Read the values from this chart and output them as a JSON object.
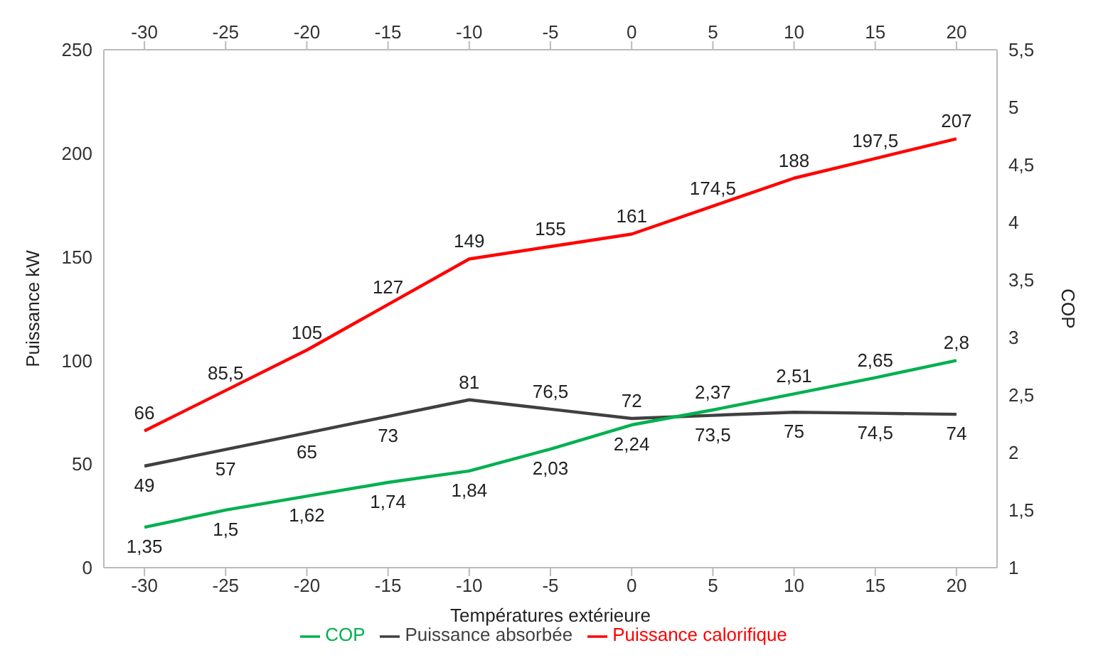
{
  "chart_data": {
    "type": "line",
    "xlabel": "Températures extérieure",
    "ylabel": "Puissance kW",
    "y2label": "COP",
    "x": [
      -30,
      -25,
      -20,
      -15,
      -10,
      -5,
      0,
      5,
      10,
      15,
      20
    ],
    "series": [
      {
        "name": "Puissance calorifique",
        "color": "#ff0000",
        "values": [
          66,
          85.5,
          105,
          127,
          149,
          155,
          161,
          174.5,
          188,
          197.5,
          207
        ],
        "value_labels": [
          "66",
          "85,5",
          "105",
          "127",
          "149",
          "155",
          "161",
          "174,5",
          "188",
          "197,5",
          "207"
        ]
      },
      {
        "name": "Puissance absorbée",
        "color": "#404040",
        "values": [
          49,
          57,
          65,
          73,
          81,
          76.5,
          72,
          73.5,
          75,
          74.5,
          74
        ],
        "value_labels": [
          "49",
          "57",
          "65",
          "73",
          "81",
          "76,5",
          "72",
          "73,5",
          "75",
          "74,5",
          "74"
        ]
      },
      {
        "name": "COP",
        "color": "#00b050",
        "axis": "y2",
        "values": [
          1.35,
          1.5,
          1.62,
          1.74,
          1.84,
          2.03,
          2.24,
          2.37,
          2.51,
          2.65,
          2.8
        ],
        "value_labels": [
          "1,35",
          "1,5",
          "1,62",
          "1,74",
          "1,84",
          "2,03",
          "2,24",
          "2,37",
          "2,51",
          "2,65",
          "2,8"
        ]
      }
    ],
    "xlim": [
      -32.5,
      22.5
    ],
    "xticks": [
      -30,
      -25,
      -20,
      -15,
      -10,
      -5,
      0,
      5,
      10,
      15,
      20
    ],
    "x2lim": [
      -32.5,
      22.5
    ],
    "x2ticks": [
      -30,
      -25,
      -20,
      -15,
      -10,
      -5,
      0,
      5,
      10,
      15,
      20
    ],
    "ylim": [
      0,
      250
    ],
    "yticks": [
      0,
      50,
      100,
      150,
      200,
      250
    ],
    "y2lim": [
      1,
      5.5
    ],
    "y2ticks": [
      1,
      {
        "value": 1.5,
        "label": "1,5"
      },
      2,
      {
        "value": 2.5,
        "label": "2,5"
      },
      3,
      {
        "value": 3.5,
        "label": "3,5"
      },
      4,
      {
        "value": 4.5,
        "label": "4,5"
      },
      5,
      {
        "value": 5.5,
        "label": "5,5"
      }
    ],
    "grid": false,
    "legend": "bottom",
    "marker": "none",
    "line_style": "solid"
  }
}
